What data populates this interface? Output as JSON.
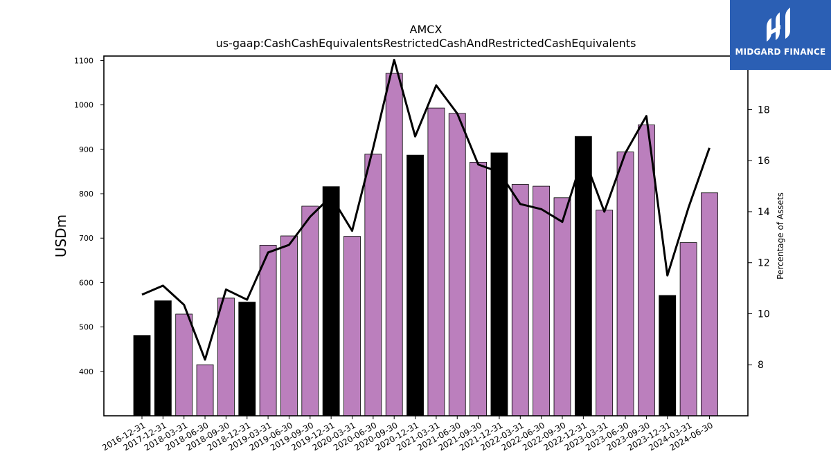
{
  "chart_data": {
    "type": "bar",
    "title": "AMCX",
    "subtitle": "us-gaap:CashCashEquivalentsRestrictedCashAndRestrictedCashEquivalents",
    "ylabel": "USDm",
    "y2label": "Percentage of Assets",
    "ylim": [
      300,
      1110
    ],
    "y2lim": [
      6.0,
      20.1
    ],
    "yticks": [
      400,
      500,
      600,
      700,
      800,
      900,
      1000,
      1100
    ],
    "y2ticks": [
      8,
      10,
      12,
      14,
      16,
      18,
      20
    ],
    "categories": [
      "2016-12-31",
      "2017-12-31",
      "2018-03-31",
      "2018-06-30",
      "2018-09-30",
      "2018-12-31",
      "2019-03-31",
      "2019-06-30",
      "2019-09-30",
      "2019-12-31",
      "2020-03-31",
      "2020-06-30",
      "2020-09-30",
      "2020-12-31",
      "2021-03-31",
      "2021-06-30",
      "2021-09-30",
      "2021-12-31",
      "2022-03-31",
      "2022-06-30",
      "2022-09-30",
      "2022-12-31",
      "2023-03-31",
      "2023-06-30",
      "2023-09-30",
      "2023-12-31",
      "2024-03-31",
      "2024-06-30"
    ],
    "series": [
      {
        "type": "bar",
        "values": [
          481,
          559,
          529,
          415,
          565,
          556,
          684,
          705,
          772,
          816,
          704,
          889,
          1071,
          887,
          993,
          981,
          871,
          892,
          821,
          817,
          791,
          929,
          763,
          894,
          955,
          571,
          690,
          802
        ],
        "annual": [
          true,
          true,
          false,
          false,
          false,
          true,
          false,
          false,
          false,
          true,
          false,
          false,
          false,
          true,
          false,
          false,
          false,
          true,
          false,
          false,
          false,
          true,
          false,
          false,
          false,
          true,
          false,
          false
        ]
      },
      {
        "type": "line",
        "axis": "right",
        "values": [
          10.75,
          11.1,
          10.35,
          8.2,
          10.95,
          10.55,
          12.4,
          12.7,
          13.8,
          14.6,
          13.25,
          16.5,
          19.95,
          16.95,
          18.95,
          17.85,
          15.85,
          15.55,
          14.3,
          14.1,
          13.6,
          16.2,
          14.0,
          16.3,
          17.75,
          11.5,
          14.15,
          16.5
        ]
      }
    ],
    "colors": {
      "annual_bar": "#000000",
      "quarter_bar": "#bb7fbd",
      "line": "#000000"
    },
    "grid": false
  },
  "brand": {
    "name": "MIDGARD FINANCE",
    "color": "#2b5fb4"
  }
}
